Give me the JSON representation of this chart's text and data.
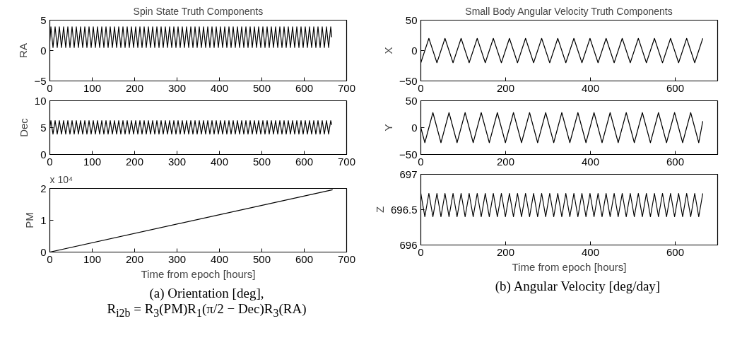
{
  "chart_data": [
    {
      "type": "line",
      "title": "Spin State Truth Components",
      "ylabel": "RA",
      "xlim": [
        0,
        700
      ],
      "xticks": [
        0,
        100,
        200,
        300,
        400,
        500,
        600,
        700
      ],
      "ylim": [
        -5,
        5
      ],
      "yticks": [
        -5,
        0,
        5
      ],
      "grid": false,
      "series": [
        {
          "color": "#000000",
          "x": [
            0,
            2.5,
            7.5,
            12.5,
            17.5,
            22.5,
            27.5,
            32.5,
            37.5,
            42.5,
            47.5,
            52.5,
            57.5,
            62.5,
            67.5,
            72.5,
            77.5,
            82.5,
            87.5,
            92.5,
            97.5,
            102.5,
            107.5,
            112.5,
            117.5,
            122.5,
            127.5,
            132.5,
            137.5,
            142.5,
            147.5,
            152.5,
            157.5,
            162.5,
            167.5,
            172.5,
            177.5,
            182.5,
            187.5,
            192.5,
            197.5,
            202.5,
            207.5,
            212.5,
            217.5,
            222.5,
            227.5,
            232.5,
            237.5,
            242.5,
            247.5,
            252.5,
            257.5,
            262.5,
            267.5,
            272.5,
            277.5,
            282.5,
            287.5,
            292.5,
            297.5,
            302.5,
            307.5,
            312.5,
            317.5,
            322.5,
            327.5,
            332.5,
            337.5,
            342.5,
            347.5,
            352.5,
            357.5,
            362.5,
            367.5,
            372.5,
            377.5,
            382.5,
            387.5,
            392.5,
            397.5,
            402.5,
            407.5,
            412.5,
            417.5,
            422.5,
            427.5,
            432.5,
            437.5,
            442.5,
            447.5,
            452.5,
            457.5,
            462.5,
            467.5,
            472.5,
            477.5,
            482.5,
            487.5,
            492.5,
            497.5,
            502.5,
            507.5,
            512.5,
            517.5,
            522.5,
            527.5,
            532.5,
            537.5,
            542.5,
            547.5,
            552.5,
            557.5,
            562.5,
            567.5,
            572.5,
            577.5,
            582.5,
            587.5,
            592.5,
            597.5,
            602.5,
            607.5,
            612.5,
            617.5,
            622.5,
            627.5,
            632.5,
            637.5,
            642.5,
            647.5,
            652.5,
            657.5,
            662.5,
            665
          ],
          "values": [
            1.5,
            3.9,
            0.5,
            3.9,
            0.5,
            3.9,
            0.5,
            3.9,
            0.5,
            3.9,
            0.5,
            3.9,
            0.5,
            3.9,
            0.5,
            3.9,
            0.5,
            3.9,
            0.5,
            3.9,
            0.5,
            3.9,
            0.5,
            3.9,
            0.5,
            3.9,
            0.5,
            3.9,
            0.5,
            3.9,
            0.5,
            3.9,
            0.5,
            3.9,
            0.5,
            3.9,
            0.5,
            3.9,
            0.5,
            3.9,
            0.5,
            3.9,
            0.5,
            3.9,
            0.5,
            3.9,
            0.5,
            3.9,
            0.5,
            3.9,
            0.5,
            3.9,
            0.5,
            3.9,
            0.5,
            3.9,
            0.5,
            3.9,
            0.5,
            3.9,
            0.5,
            3.9,
            0.5,
            3.9,
            0.5,
            3.9,
            0.5,
            3.9,
            0.5,
            3.9,
            0.5,
            3.9,
            0.5,
            3.9,
            0.5,
            3.9,
            0.5,
            3.9,
            0.5,
            3.9,
            0.5,
            3.9,
            0.5,
            3.9,
            0.5,
            3.9,
            0.5,
            3.9,
            0.5,
            3.9,
            0.5,
            3.9,
            0.5,
            3.9,
            0.5,
            3.9,
            0.5,
            3.9,
            0.5,
            3.9,
            0.5,
            3.9,
            0.5,
            3.9,
            0.5,
            3.9,
            0.5,
            3.9,
            0.5,
            3.9,
            0.5,
            3.9,
            0.5,
            3.9,
            0.5,
            3.9,
            0.5,
            3.9,
            0.5,
            3.9,
            0.5,
            3.9,
            0.5,
            3.9,
            0.5,
            3.9,
            0.5,
            3.9,
            0.5,
            3.9,
            0.5,
            3.9,
            0.5,
            3.9,
            2.2
          ]
        }
      ]
    },
    {
      "type": "line",
      "ylabel": "Dec",
      "xlim": [
        0,
        700
      ],
      "xticks": [
        0,
        100,
        200,
        300,
        400,
        500,
        600,
        700
      ],
      "ylim": [
        0,
        10
      ],
      "yticks": [
        0,
        5,
        10
      ],
      "grid": false,
      "series": [
        {
          "color": "#000000",
          "x": [
            0,
            2.5,
            7.5,
            12.5,
            17.5,
            22.5,
            27.5,
            32.5,
            37.5,
            42.5,
            47.5,
            52.5,
            57.5,
            62.5,
            67.5,
            72.5,
            77.5,
            82.5,
            87.5,
            92.5,
            97.5,
            102.5,
            107.5,
            112.5,
            117.5,
            122.5,
            127.5,
            132.5,
            137.5,
            142.5,
            147.5,
            152.5,
            157.5,
            162.5,
            167.5,
            172.5,
            177.5,
            182.5,
            187.5,
            192.5,
            197.5,
            202.5,
            207.5,
            212.5,
            217.5,
            222.5,
            227.5,
            232.5,
            237.5,
            242.5,
            247.5,
            252.5,
            257.5,
            262.5,
            267.5,
            272.5,
            277.5,
            282.5,
            287.5,
            292.5,
            297.5,
            302.5,
            307.5,
            312.5,
            317.5,
            322.5,
            327.5,
            332.5,
            337.5,
            342.5,
            347.5,
            352.5,
            357.5,
            362.5,
            367.5,
            372.5,
            377.5,
            382.5,
            387.5,
            392.5,
            397.5,
            402.5,
            407.5,
            412.5,
            417.5,
            422.5,
            427.5,
            432.5,
            437.5,
            442.5,
            447.5,
            452.5,
            457.5,
            462.5,
            467.5,
            472.5,
            477.5,
            482.5,
            487.5,
            492.5,
            497.5,
            502.5,
            507.5,
            512.5,
            517.5,
            522.5,
            527.5,
            532.5,
            537.5,
            542.5,
            547.5,
            552.5,
            557.5,
            562.5,
            567.5,
            572.5,
            577.5,
            582.5,
            587.5,
            592.5,
            597.5,
            602.5,
            607.5,
            612.5,
            617.5,
            622.5,
            627.5,
            632.5,
            637.5,
            642.5,
            647.5,
            652.5,
            657.5,
            662.5,
            665
          ],
          "values": [
            5,
            6.3,
            3.8,
            6.3,
            3.8,
            6.3,
            3.8,
            6.3,
            3.8,
            6.3,
            3.8,
            6.3,
            3.8,
            6.3,
            3.8,
            6.3,
            3.8,
            6.3,
            3.8,
            6.3,
            3.8,
            6.3,
            3.8,
            6.3,
            3.8,
            6.3,
            3.8,
            6.3,
            3.8,
            6.3,
            3.8,
            6.3,
            3.8,
            6.3,
            3.8,
            6.3,
            3.8,
            6.3,
            3.8,
            6.3,
            3.8,
            6.3,
            3.8,
            6.3,
            3.8,
            6.3,
            3.8,
            6.3,
            3.8,
            6.3,
            3.8,
            6.3,
            3.8,
            6.3,
            3.8,
            6.3,
            3.8,
            6.3,
            3.8,
            6.3,
            3.8,
            6.3,
            3.8,
            6.3,
            3.8,
            6.3,
            3.8,
            6.3,
            3.8,
            6.3,
            3.8,
            6.3,
            3.8,
            6.3,
            3.8,
            6.3,
            3.8,
            6.3,
            3.8,
            6.3,
            3.8,
            6.3,
            3.8,
            6.3,
            3.8,
            6.3,
            3.8,
            6.3,
            3.8,
            6.3,
            3.8,
            6.3,
            3.8,
            6.3,
            3.8,
            6.3,
            3.8,
            6.3,
            3.8,
            6.3,
            3.8,
            6.3,
            3.8,
            6.3,
            3.8,
            6.3,
            3.8,
            6.3,
            3.8,
            6.3,
            3.8,
            6.3,
            3.8,
            6.3,
            3.8,
            6.3,
            3.8,
            6.3,
            3.8,
            6.3,
            3.8,
            6.3,
            3.8,
            6.3,
            3.8,
            6.3,
            3.8,
            6.3,
            3.8,
            6.3,
            3.8,
            6.3,
            3.8,
            6.3,
            5.5
          ]
        }
      ]
    },
    {
      "type": "line",
      "ylabel": "PM",
      "xlabel": "Time from epoch [hours]",
      "xlim": [
        0,
        700
      ],
      "xticks": [
        0,
        100,
        200,
        300,
        400,
        500,
        600,
        700
      ],
      "ylim": [
        0,
        2
      ],
      "yticks": [
        0,
        1,
        2
      ],
      "grid": false,
      "subtitle": "x 10⁴",
      "annotations": [
        "(a) Orientation [deg],",
        "R$_{i2b}$ = R$_{3}$(PM)R$_{1}$(π/2 − Dec)R$_{3}$(RA)"
      ],
      "series": [
        {
          "color": "#000000",
          "x": [
            0,
            667
          ],
          "values": [
            0,
            1.96
          ]
        }
      ]
    },
    {
      "type": "line",
      "title": "Small Body Angular Velocity Truth Components",
      "ylabel": "X",
      "xlim": [
        0,
        700
      ],
      "xticks": [
        0,
        200,
        400,
        600
      ],
      "ylim": [
        -50,
        50
      ],
      "yticks": [
        -50,
        0,
        50
      ],
      "grid": false,
      "series": [
        {
          "color": "#000000",
          "x": [
            0,
            9.5,
            19,
            28.5,
            38,
            47.5,
            57,
            66.5,
            76,
            85.5,
            95,
            104.5,
            114,
            123.5,
            133,
            142.5,
            152,
            161.5,
            171,
            180.5,
            190,
            199.5,
            209,
            218.5,
            228,
            237.5,
            247,
            256.5,
            266,
            275.5,
            285,
            294.5,
            304,
            313.5,
            323,
            332.5,
            342,
            351.5,
            361,
            370.5,
            380,
            389.5,
            399,
            408.5,
            418,
            427.5,
            437,
            446.5,
            456,
            465.5,
            475,
            484.5,
            494,
            503.5,
            513,
            522.5,
            532,
            541.5,
            551,
            560.5,
            570,
            579.5,
            589,
            598.5,
            608,
            617.5,
            627,
            636.5,
            646,
            655.5,
            665
          ],
          "values": [
            -20,
            0,
            20,
            0,
            -20,
            0,
            20,
            0,
            -20,
            0,
            20,
            0,
            -20,
            0,
            20,
            0,
            -20,
            0,
            20,
            0,
            -20,
            0,
            20,
            0,
            -20,
            0,
            20,
            0,
            -20,
            0,
            20,
            0,
            -20,
            0,
            20,
            0,
            -20,
            0,
            20,
            0,
            -20,
            0,
            20,
            0,
            -20,
            0,
            20,
            0,
            -20,
            0,
            20,
            0,
            -20,
            0,
            20,
            0,
            -20,
            0,
            20,
            0,
            -20,
            0,
            20,
            0,
            -20,
            0,
            20,
            0,
            -20,
            0,
            20
          ]
        }
      ]
    },
    {
      "type": "line",
      "ylabel": "Y",
      "xlim": [
        0,
        700
      ],
      "xticks": [
        0,
        200,
        400,
        600
      ],
      "ylim": [
        -50,
        50
      ],
      "yticks": [
        -50,
        0,
        50
      ],
      "grid": false,
      "series": [
        {
          "color": "#000000",
          "x": [
            0,
            9.5,
            19,
            28.5,
            38,
            47.5,
            57,
            66.5,
            76,
            85.5,
            95,
            104.5,
            114,
            123.5,
            133,
            142.5,
            152,
            161.5,
            171,
            180.5,
            190,
            199.5,
            209,
            218.5,
            228,
            237.5,
            247,
            256.5,
            266,
            275.5,
            285,
            294.5,
            304,
            313.5,
            323,
            332.5,
            342,
            351.5,
            361,
            370.5,
            380,
            389.5,
            399,
            408.5,
            418,
            427.5,
            437,
            446.5,
            456,
            465.5,
            475,
            484.5,
            494,
            503.5,
            513,
            522.5,
            532,
            541.5,
            551,
            560.5,
            570,
            579.5,
            589,
            598.5,
            608,
            617.5,
            627,
            636.5,
            646,
            655.5,
            665
          ],
          "values": [
            0,
            -28,
            0,
            28,
            0,
            -28,
            0,
            28,
            0,
            -28,
            0,
            28,
            0,
            -28,
            0,
            28,
            0,
            -28,
            0,
            28,
            0,
            -28,
            0,
            28,
            0,
            -28,
            0,
            28,
            0,
            -28,
            0,
            28,
            0,
            -28,
            0,
            28,
            0,
            -28,
            0,
            28,
            0,
            -28,
            0,
            28,
            0,
            -28,
            0,
            28,
            0,
            -28,
            0,
            28,
            0,
            -28,
            0,
            28,
            0,
            -28,
            0,
            28,
            0,
            -28,
            0,
            28,
            0,
            -28,
            0,
            28,
            0,
            -28,
            12
          ]
        }
      ]
    },
    {
      "type": "line",
      "ylabel": "Z",
      "xlabel": "Time from epoch [hours]",
      "xlim": [
        0,
        700
      ],
      "xticks": [
        0,
        200,
        400,
        600
      ],
      "ylim": [
        696,
        697
      ],
      "yticks": [
        696,
        696.5,
        697
      ],
      "grid": false,
      "annotations": [
        "(b) Angular Velocity [deg/day]"
      ],
      "series": [
        {
          "color": "#000000",
          "x": [
            0,
            9.5,
            19,
            28.5,
            38,
            47.5,
            57,
            66.5,
            76,
            85.5,
            95,
            104.5,
            114,
            123.5,
            133,
            142.5,
            152,
            161.5,
            171,
            180.5,
            190,
            199.5,
            209,
            218.5,
            228,
            237.5,
            247,
            256.5,
            266,
            275.5,
            285,
            294.5,
            304,
            313.5,
            323,
            332.5,
            342,
            351.5,
            361,
            370.5,
            380,
            389.5,
            399,
            408.5,
            418,
            427.5,
            437,
            446.5,
            456,
            465.5,
            475,
            484.5,
            494,
            503.5,
            513,
            522.5,
            532,
            541.5,
            551,
            560.5,
            570,
            579.5,
            589,
            598.5,
            608,
            617.5,
            627,
            636.5,
            646,
            655.5,
            665
          ],
          "values": [
            696.73,
            696.4,
            696.73,
            696.4,
            696.73,
            696.4,
            696.73,
            696.4,
            696.73,
            696.4,
            696.73,
            696.4,
            696.73,
            696.4,
            696.73,
            696.4,
            696.73,
            696.4,
            696.73,
            696.4,
            696.73,
            696.4,
            696.73,
            696.4,
            696.73,
            696.4,
            696.73,
            696.4,
            696.73,
            696.4,
            696.73,
            696.4,
            696.73,
            696.4,
            696.73,
            696.4,
            696.73,
            696.4,
            696.73,
            696.4,
            696.73,
            696.4,
            696.73,
            696.4,
            696.73,
            696.4,
            696.73,
            696.4,
            696.73,
            696.4,
            696.73,
            696.4,
            696.73,
            696.4,
            696.73,
            696.4,
            696.73,
            696.4,
            696.73,
            696.4,
            696.73,
            696.4,
            696.73,
            696.4,
            696.73,
            696.4,
            696.73,
            696.4,
            696.73,
            696.4,
            696.73
          ]
        }
      ]
    }
  ]
}
